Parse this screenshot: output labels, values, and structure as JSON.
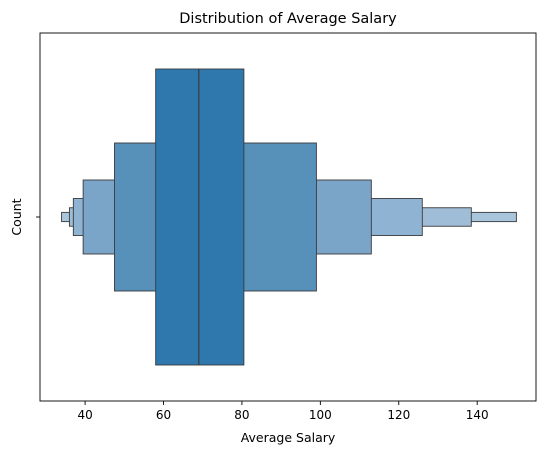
{
  "chart_data": {
    "type": "boxen",
    "title": "Distribution of Average Salary",
    "xlabel": "Average Salary",
    "ylabel": "Count",
    "xlim": [
      28.5,
      155
    ],
    "xticks": [
      40,
      60,
      80,
      100,
      120,
      140
    ],
    "xtick_labels": [
      "40",
      "60",
      "80",
      "100",
      "120",
      "140"
    ],
    "yticks": [
      ""
    ],
    "median": 69,
    "letter_values": [
      {
        "level": 1,
        "low": 58,
        "high": 80.5,
        "color": "#2e78ae"
      },
      {
        "level": 2,
        "low": 47.5,
        "high": 99,
        "color": "#5790b9"
      },
      {
        "level": 3,
        "low": 39.5,
        "high": 113,
        "color": "#7ba4c9"
      },
      {
        "level": 4,
        "low": 37,
        "high": 126,
        "color": "#8fb3d2"
      },
      {
        "level": 5,
        "low": 36,
        "high": 138.5,
        "color": "#9fbdd7"
      },
      {
        "level": 6,
        "low": 34,
        "high": 150,
        "color": "#a9c5dc"
      }
    ],
    "colors": {
      "accent": "#2e78ae",
      "edge": "#3a3a3a"
    },
    "grid": false,
    "legend": "none"
  }
}
